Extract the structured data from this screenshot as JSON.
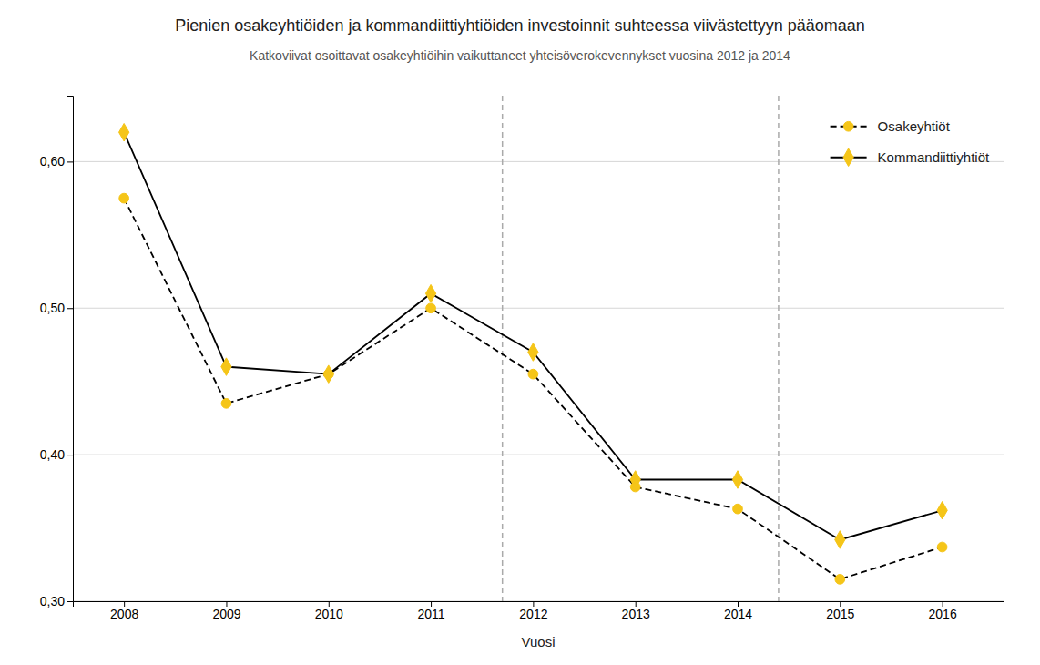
{
  "chart_data": {
    "type": "line",
    "title": "Pienien osakeyhtiöiden ja kommandiittiyhtiöiden investoinnit suhteessa viivästettyyn pääomaan",
    "subtitle": "Katkoviivat osoittavat osakeyhtiöihin vaikuttaneet yhteisöverokevennykset vuosina 2012 ja 2014",
    "xlabel": "Vuosi",
    "x": [
      2008,
      2009,
      2010,
      2011,
      2012,
      2013,
      2014,
      2015,
      2016
    ],
    "series": [
      {
        "name": "Osakeyhtiöt",
        "color": "#f5c518",
        "marker": "circle",
        "line_style": "dashed",
        "values": [
          0.575,
          0.435,
          0.455,
          0.5,
          0.455,
          0.378,
          0.363,
          0.315,
          0.337
        ]
      },
      {
        "name": "Kommandiittiyhtiöt",
        "color": "#f5c518",
        "marker": "diamond",
        "line_style": "solid",
        "values": [
          0.62,
          0.46,
          0.455,
          0.51,
          0.47,
          0.383,
          0.383,
          0.342,
          0.362
        ]
      }
    ],
    "vlines": [
      2011.7,
      2014.4
    ],
    "xlim": [
      2007.5,
      2016.6
    ],
    "xticks": [
      2008,
      2009,
      2010,
      2011,
      2012,
      2013,
      2014,
      2015,
      2016
    ],
    "ylim": [
      0.3,
      0.645
    ],
    "yticks": [
      {
        "value": 0.3,
        "label": "0,30"
      },
      {
        "value": 0.4,
        "label": "0,40"
      },
      {
        "value": 0.5,
        "label": "0,50"
      },
      {
        "value": 0.6,
        "label": "0,60"
      }
    ],
    "grid": true,
    "legend": "upper right"
  }
}
